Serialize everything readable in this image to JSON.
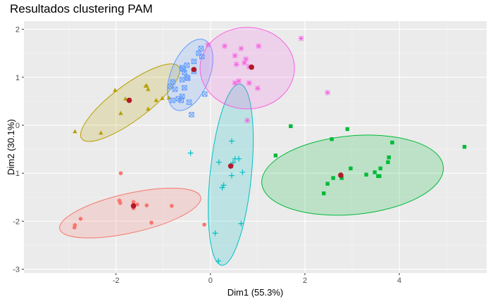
{
  "chart_data": {
    "type": "scatter",
    "title": "Resultados clustering PAM",
    "xlabel": "Dim1 (55.3%)",
    "ylabel": "Dim2 (30.1%)",
    "xlim": [
      -3.95,
      5.85
    ],
    "ylim": [
      -3.08,
      2.17
    ],
    "x_ticks": [
      -2,
      0,
      2,
      4
    ],
    "y_ticks": [
      -3,
      -2,
      -1,
      0,
      1,
      2
    ],
    "grid": true,
    "legend": "none",
    "medoid_color": "#B2182B",
    "clusters": [
      {
        "color": "#F8766D",
        "shape": "circle",
        "medoid": [
          -1.63,
          -1.68
        ],
        "ellipse": {
          "cx": -1.7,
          "cy": -1.83,
          "rx": 1.53,
          "ry": 0.41,
          "angle_deg": 12.7
        },
        "points": [
          [
            -1.9,
            -1.0
          ],
          [
            -1.93,
            -1.57
          ],
          [
            -1.91,
            -1.62
          ],
          [
            -1.63,
            -1.6
          ],
          [
            -1.63,
            -1.73
          ],
          [
            -1.55,
            -1.65
          ],
          [
            -1.35,
            -1.67
          ],
          [
            -1.25,
            -2.03
          ],
          [
            -0.82,
            -1.68
          ],
          [
            -2.75,
            -1.95
          ],
          [
            -2.87,
            -2.08
          ],
          [
            -2.88,
            -2.13
          ],
          [
            -0.13,
            -2.07
          ]
        ]
      },
      {
        "color": "#B79F00",
        "shape": "triangle",
        "medoid": [
          -1.72,
          0.52
        ],
        "ellipse": {
          "cx": -1.7,
          "cy": 0.47,
          "rx": 1.28,
          "ry": 0.37,
          "angle_deg": 36.7
        },
        "points": [
          [
            -2.87,
            -0.13
          ],
          [
            -2.32,
            -0.16
          ],
          [
            -2.02,
            0.73
          ],
          [
            -1.8,
            0.55
          ],
          [
            -1.9,
            0.25
          ],
          [
            -1.37,
            0.82
          ],
          [
            -1.35,
            0.82
          ],
          [
            -1.32,
            0.75
          ],
          [
            -1.15,
            0.52
          ],
          [
            -1.32,
            0.34
          ],
          [
            -1.02,
            0.56
          ],
          [
            -0.88,
            0.57
          ]
        ]
      },
      {
        "color": "#00BA38",
        "shape": "square",
        "medoid": [
          2.76,
          -1.04
        ],
        "ellipse": {
          "cx": 3.01,
          "cy": -1.04,
          "rx": 1.93,
          "ry": 0.82,
          "angle_deg": 5.3
        },
        "points": [
          [
            1.7,
            -0.02
          ],
          [
            2.57,
            -0.29
          ],
          [
            2.9,
            -0.08
          ],
          [
            3.85,
            -0.36
          ],
          [
            5.38,
            -0.45
          ],
          [
            1.38,
            -0.63
          ],
          [
            2.6,
            -1.1
          ],
          [
            2.78,
            -1.1
          ],
          [
            2.97,
            -0.9
          ],
          [
            3.3,
            -1.03
          ],
          [
            3.48,
            -0.98
          ],
          [
            3.6,
            -0.9
          ],
          [
            3.58,
            -1.06
          ],
          [
            3.55,
            -1.06
          ],
          [
            3.76,
            -0.77
          ],
          [
            3.78,
            -0.67
          ],
          [
            2.4,
            -1.42
          ],
          [
            2.48,
            -1.22
          ]
        ]
      },
      {
        "color": "#00BFC4",
        "shape": "plus",
        "medoid": [
          0.43,
          -0.85
        ],
        "ellipse": {
          "cx": 0.43,
          "cy": -1.03,
          "rx": 1.93,
          "ry": 0.43,
          "angle_deg": 84.3
        },
        "points": [
          [
            -0.42,
            -0.58
          ],
          [
            0.45,
            -0.33
          ],
          [
            0.18,
            -0.77
          ],
          [
            0.52,
            -0.7
          ],
          [
            0.48,
            -0.78
          ],
          [
            0.6,
            -0.7
          ],
          [
            0.28,
            -1.25
          ],
          [
            0.25,
            -1.3
          ],
          [
            0.45,
            -1.05
          ],
          [
            0.68,
            -0.98
          ],
          [
            0.65,
            -2.05
          ],
          [
            0.1,
            -2.25
          ],
          [
            0.17,
            -2.83
          ]
        ]
      },
      {
        "color": "#619CFF",
        "shape": "square-x",
        "medoid": [
          -0.35,
          1.16
        ],
        "ellipse": {
          "cx": -0.43,
          "cy": 1.05,
          "rx": 0.8,
          "ry": 0.4,
          "angle_deg": 68.1
        },
        "points": [
          [
            -0.18,
            1.43
          ],
          [
            -0.25,
            1.5
          ],
          [
            -0.2,
            1.6
          ],
          [
            -0.35,
            1.33
          ],
          [
            -0.5,
            1.25
          ],
          [
            -0.6,
            1.2
          ],
          [
            -0.5,
            1.0
          ],
          [
            -0.48,
            0.98
          ],
          [
            -0.6,
            0.95
          ],
          [
            -0.55,
            0.78
          ],
          [
            -0.75,
            0.75
          ],
          [
            -0.68,
            0.55
          ],
          [
            -0.8,
            0.52
          ],
          [
            -0.62,
            0.52
          ],
          [
            -0.45,
            0.48
          ],
          [
            -0.6,
            0.6
          ],
          [
            -0.8,
            0.9
          ],
          [
            -0.85,
            0.81
          ],
          [
            -0.12,
            0.65
          ],
          [
            -0.4,
            0.22
          ],
          [
            -0.58,
            1.17
          ],
          [
            -0.35,
            1.12
          ],
          [
            -0.55,
            1.1
          ]
        ]
      },
      {
        "color": "#F564E3",
        "shape": "asterisk",
        "medoid": [
          0.87,
          1.21
        ],
        "ellipse": {
          "cx": 0.78,
          "cy": 1.19,
          "rx": 1.0,
          "ry": 0.85,
          "angle_deg": 0
        },
        "points": [
          [
            -0.05,
            1.68
          ],
          [
            0.3,
            1.65
          ],
          [
            0.65,
            1.6
          ],
          [
            1.02,
            1.65
          ],
          [
            0.52,
            1.45
          ],
          [
            0.75,
            1.38
          ],
          [
            0.72,
            1.3
          ],
          [
            0.55,
            1.27
          ],
          [
            0.82,
            1.22
          ],
          [
            0.52,
            0.88
          ],
          [
            0.6,
            0.92
          ],
          [
            0.82,
            0.88
          ],
          [
            1.0,
            0.77
          ],
          [
            1.92,
            1.81
          ],
          [
            2.48,
            0.68
          ],
          [
            0.78,
            0.1
          ]
        ]
      }
    ]
  }
}
